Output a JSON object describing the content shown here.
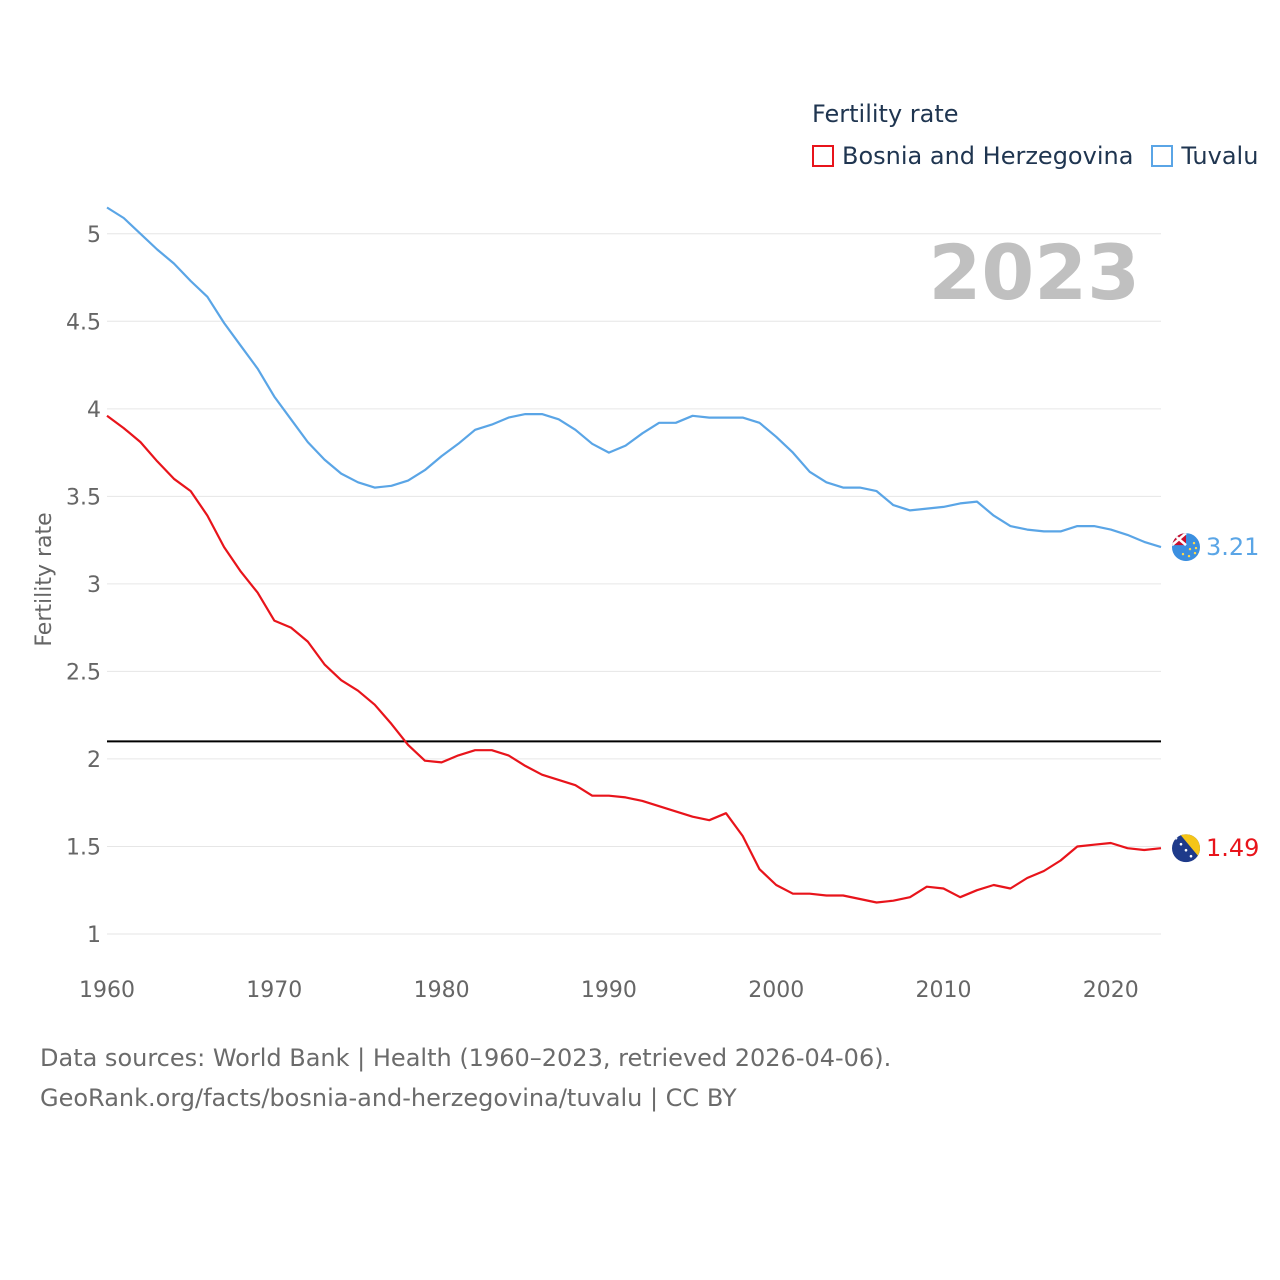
{
  "legend": {
    "title": "Fertility rate",
    "items": [
      {
        "label": "Bosnia and Herzegovina",
        "color": "#e8141b"
      },
      {
        "label": "Tuvalu",
        "color": "#5aa5e6"
      }
    ]
  },
  "current_year": "2023",
  "footer": {
    "line1": "Data sources: World Bank | Health (1960–2023, retrieved 2026-04-06).",
    "line2": "GeoRank.org/facts/bosnia-and-herzegovina/tuvalu | CC BY"
  },
  "chart_data": {
    "type": "line",
    "title": "",
    "xlabel": "",
    "ylabel": "Fertility rate",
    "xlim": [
      1960,
      2023
    ],
    "ylim": [
      0.8,
      5.25
    ],
    "x_ticks": [
      1960,
      1970,
      1980,
      1990,
      2000,
      2010,
      2020
    ],
    "y_ticks": [
      1,
      1.5,
      2,
      2.5,
      3,
      3.5,
      4,
      4.5,
      5
    ],
    "y_tick_labels": [
      "1",
      "1.5",
      "2",
      "2.5",
      "3",
      "3.5",
      "4",
      "4.5",
      "5"
    ],
    "reference_line": {
      "y": 2.1,
      "color": "#000000"
    },
    "x": [
      1960,
      1961,
      1962,
      1963,
      1964,
      1965,
      1966,
      1967,
      1968,
      1969,
      1970,
      1971,
      1972,
      1973,
      1974,
      1975,
      1976,
      1977,
      1978,
      1979,
      1980,
      1981,
      1982,
      1983,
      1984,
      1985,
      1986,
      1987,
      1988,
      1989,
      1990,
      1991,
      1992,
      1993,
      1994,
      1995,
      1996,
      1997,
      1998,
      1999,
      2000,
      2001,
      2002,
      2003,
      2004,
      2005,
      2006,
      2007,
      2008,
      2009,
      2010,
      2011,
      2012,
      2013,
      2014,
      2015,
      2016,
      2017,
      2018,
      2019,
      2020,
      2021,
      2022,
      2023
    ],
    "series": [
      {
        "name": "Bosnia and Herzegovina",
        "color": "#e8141b",
        "end_label": "1.49",
        "flag": "bosnia-flag",
        "values": [
          3.96,
          3.89,
          3.81,
          3.7,
          3.6,
          3.53,
          3.39,
          3.21,
          3.07,
          2.95,
          2.79,
          2.75,
          2.67,
          2.54,
          2.45,
          2.39,
          2.31,
          2.2,
          2.08,
          1.99,
          1.98,
          2.02,
          2.05,
          2.05,
          2.02,
          1.96,
          1.91,
          1.88,
          1.85,
          1.79,
          1.79,
          1.78,
          1.76,
          1.73,
          1.7,
          1.67,
          1.65,
          1.69,
          1.56,
          1.37,
          1.28,
          1.23,
          1.23,
          1.22,
          1.22,
          1.2,
          1.18,
          1.19,
          1.21,
          1.27,
          1.26,
          1.21,
          1.25,
          1.28,
          1.26,
          1.32,
          1.36,
          1.42,
          1.5,
          1.51,
          1.52,
          1.49,
          1.48,
          1.49
        ]
      },
      {
        "name": "Tuvalu",
        "color": "#5aa5e6",
        "end_label": "3.21",
        "flag": "tuvalu-flag",
        "values": [
          5.15,
          5.09,
          5.0,
          4.91,
          4.83,
          4.73,
          4.64,
          4.49,
          4.36,
          4.23,
          4.07,
          3.94,
          3.81,
          3.71,
          3.63,
          3.58,
          3.55,
          3.56,
          3.59,
          3.65,
          3.73,
          3.8,
          3.88,
          3.91,
          3.95,
          3.97,
          3.97,
          3.94,
          3.88,
          3.8,
          3.75,
          3.79,
          3.86,
          3.92,
          3.92,
          3.96,
          3.95,
          3.95,
          3.95,
          3.92,
          3.84,
          3.75,
          3.64,
          3.58,
          3.55,
          3.55,
          3.53,
          3.45,
          3.42,
          3.43,
          3.44,
          3.46,
          3.47,
          3.39,
          3.33,
          3.31,
          3.3,
          3.3,
          3.33,
          3.33,
          3.31,
          3.28,
          3.24,
          3.21
        ]
      }
    ]
  }
}
